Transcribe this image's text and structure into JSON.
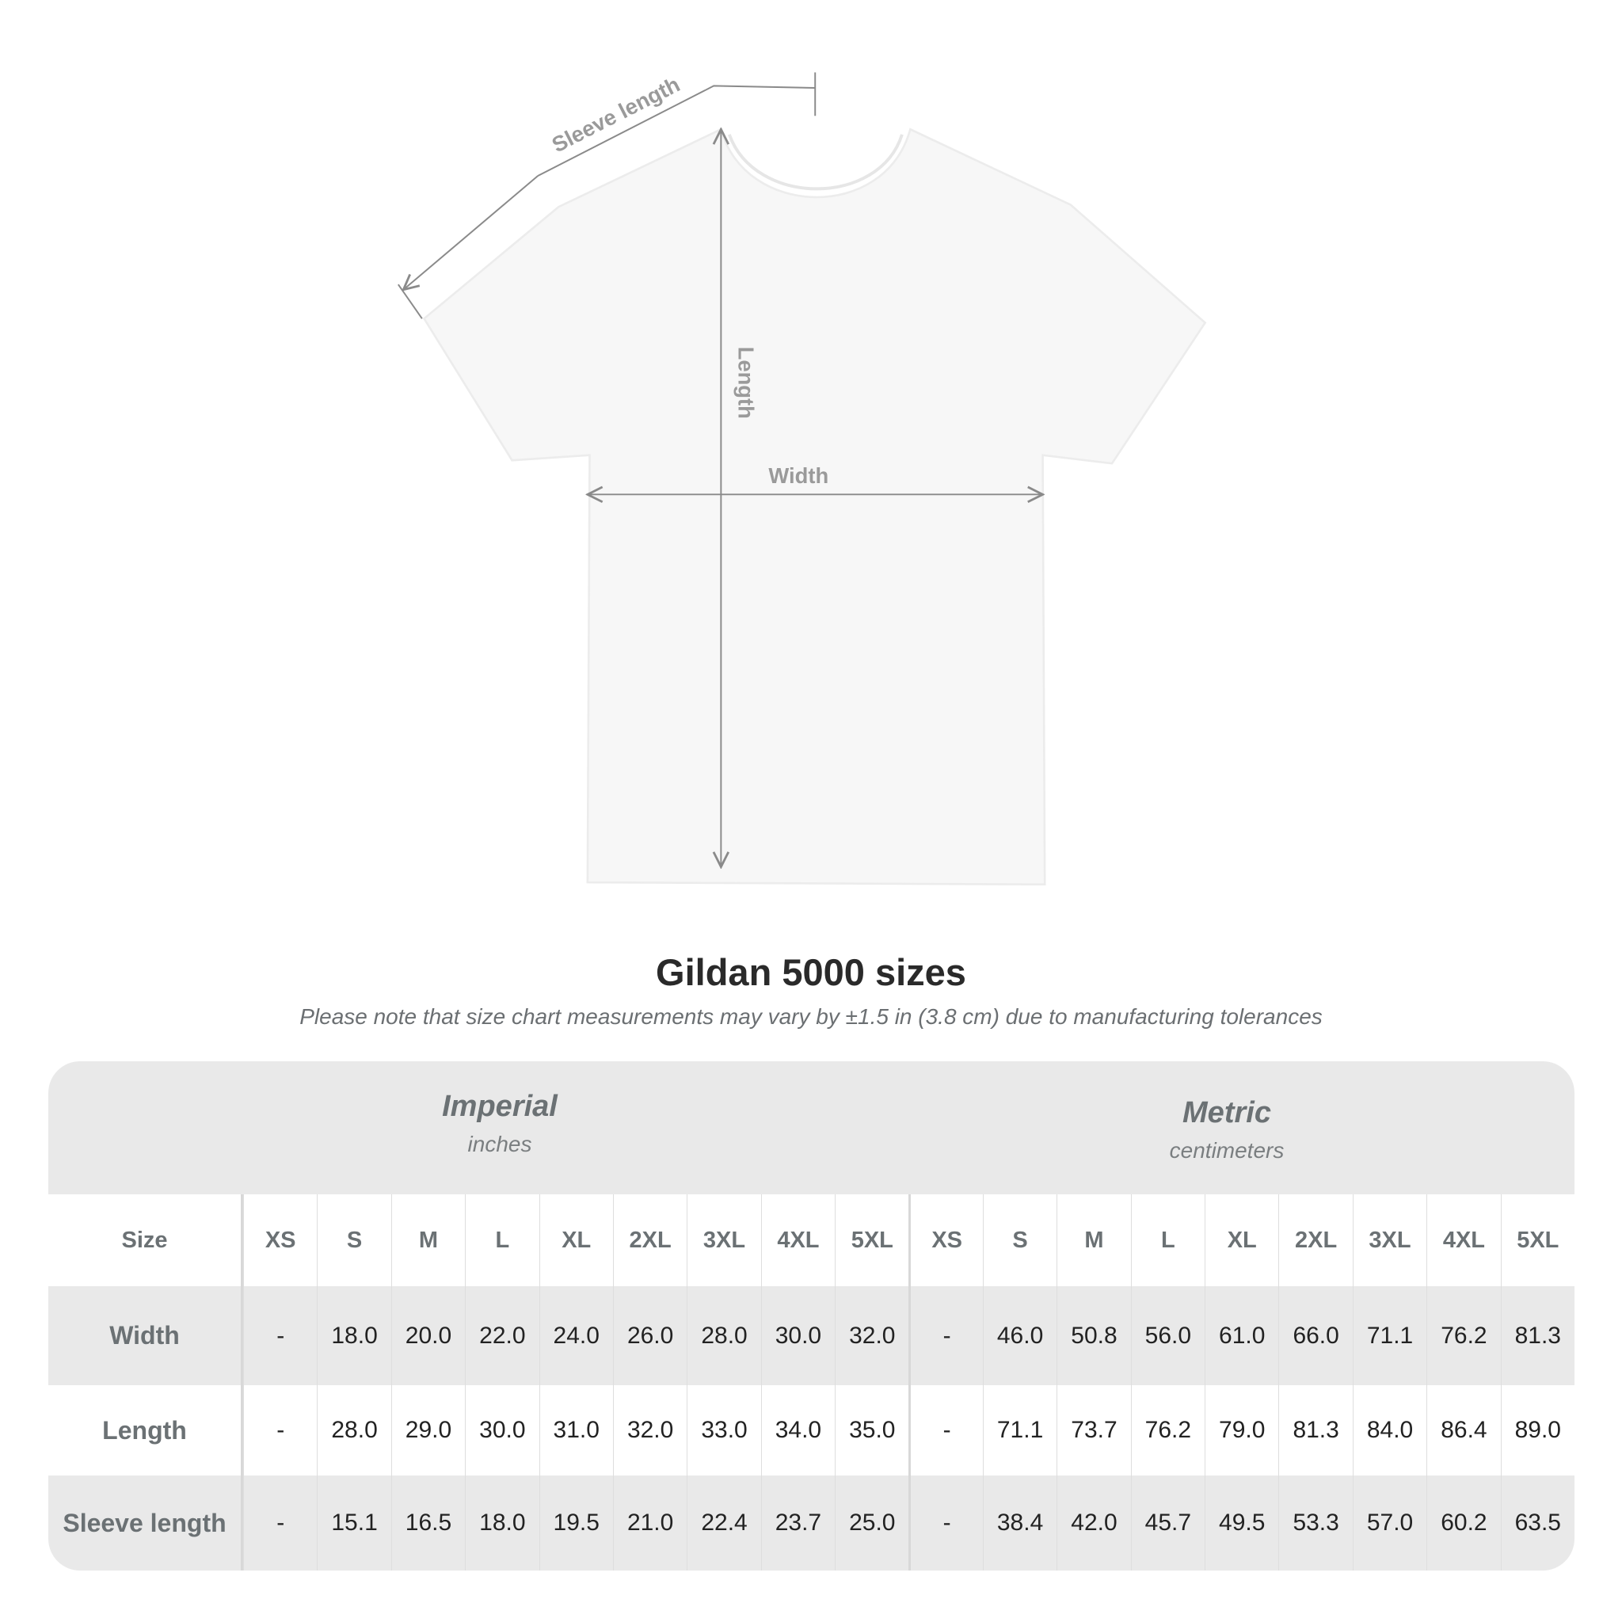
{
  "diagram": {
    "labels": {
      "sleeve": "Sleeve length",
      "length": "Length",
      "width": "Width"
    }
  },
  "title": "Gildan 5000 sizes",
  "note": "Please note that size chart measurements may vary by ±1.5 in (3.8 cm) due to manufacturing tolerances",
  "table": {
    "imperial": {
      "title": "Imperial",
      "unit": "inches"
    },
    "metric": {
      "title": "Metric",
      "unit": "centimeters"
    },
    "size_label": "Size",
    "sizes": [
      "XS",
      "S",
      "M",
      "L",
      "XL",
      "2XL",
      "3XL",
      "4XL",
      "5XL"
    ],
    "rows": [
      {
        "label": "Width",
        "imperial": [
          "-",
          "18.0",
          "20.0",
          "22.0",
          "24.0",
          "26.0",
          "28.0",
          "30.0",
          "32.0"
        ],
        "metric": [
          "-",
          "46.0",
          "50.8",
          "56.0",
          "61.0",
          "66.0",
          "71.1",
          "76.2",
          "81.3"
        ]
      },
      {
        "label": "Length",
        "imperial": [
          "-",
          "28.0",
          "29.0",
          "30.0",
          "31.0",
          "32.0",
          "33.0",
          "34.0",
          "35.0"
        ],
        "metric": [
          "-",
          "71.1",
          "73.7",
          "76.2",
          "79.0",
          "81.3",
          "84.0",
          "86.4",
          "89.0"
        ]
      },
      {
        "label": "Sleeve length",
        "imperial": [
          "-",
          "15.1",
          "16.5",
          "18.0",
          "19.5",
          "21.0",
          "22.4",
          "23.7",
          "25.0"
        ],
        "metric": [
          "-",
          "38.4",
          "42.0",
          "45.7",
          "49.5",
          "53.3",
          "57.0",
          "60.2",
          "63.5"
        ]
      }
    ]
  }
}
